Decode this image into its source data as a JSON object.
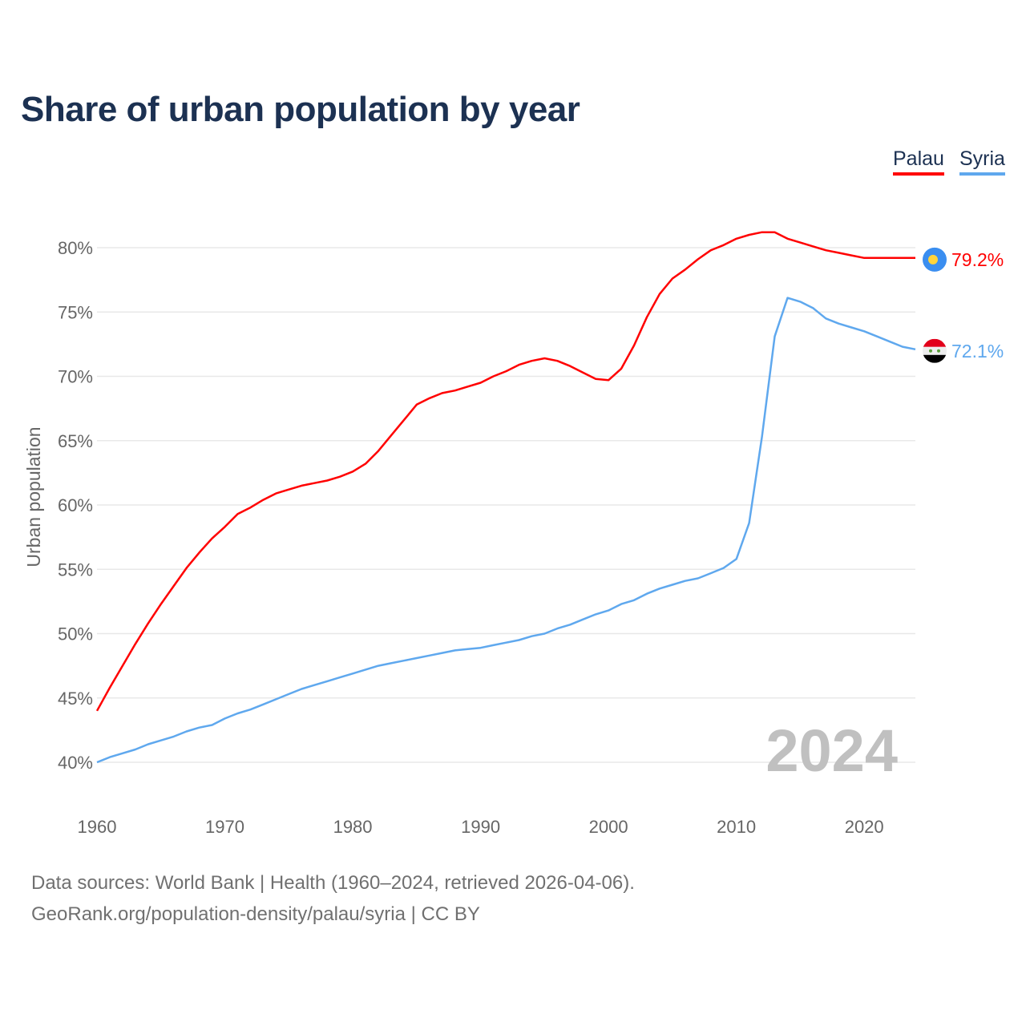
{
  "title": "Share of urban population by year",
  "legend": [
    {
      "name": "Palau",
      "color": "#ff0000"
    },
    {
      "name": "Syria",
      "color": "#5fa8ee"
    }
  ],
  "year_watermark": "2024",
  "footer": {
    "line1": "Data sources: World Bank | Health (1960–2024, retrieved 2026-04-06).",
    "line2": "GeoRank.org/population-density/palau/syria | CC BY"
  },
  "chart_data": {
    "type": "line",
    "title": "Share of urban population by year",
    "xlabel": "",
    "ylabel": "Urban population",
    "xlim": [
      1960,
      2024
    ],
    "ylim": [
      40,
      80
    ],
    "yticks": [
      40,
      45,
      50,
      55,
      60,
      65,
      70,
      75,
      80
    ],
    "ytick_labels": [
      "40%",
      "45%",
      "50%",
      "55%",
      "60%",
      "65%",
      "70%",
      "75%",
      "80%"
    ],
    "xticks": [
      1960,
      1970,
      1980,
      1990,
      2000,
      2010,
      2020
    ],
    "xtick_labels": [
      "1960",
      "1970",
      "1980",
      "1990",
      "2000",
      "2010",
      "2020"
    ],
    "grid": true,
    "legend_position": "top-right",
    "x": [
      1960,
      1961,
      1962,
      1963,
      1964,
      1965,
      1966,
      1967,
      1968,
      1969,
      1970,
      1971,
      1972,
      1973,
      1974,
      1975,
      1976,
      1977,
      1978,
      1979,
      1980,
      1981,
      1982,
      1983,
      1984,
      1985,
      1986,
      1987,
      1988,
      1989,
      1990,
      1991,
      1992,
      1993,
      1994,
      1995,
      1996,
      1997,
      1998,
      1999,
      2000,
      2001,
      2002,
      2003,
      2004,
      2005,
      2006,
      2007,
      2008,
      2009,
      2010,
      2011,
      2012,
      2013,
      2014,
      2015,
      2016,
      2017,
      2018,
      2019,
      2020,
      2021,
      2022,
      2023,
      2024
    ],
    "series": [
      {
        "name": "Palau",
        "color": "#ff0000",
        "end_label": "79.2%",
        "flag": "palau-flag",
        "values": [
          44.0,
          45.8,
          47.5,
          49.2,
          50.8,
          52.3,
          53.7,
          55.1,
          56.3,
          57.4,
          58.3,
          59.3,
          59.8,
          60.4,
          60.9,
          61.2,
          61.5,
          61.7,
          61.9,
          62.2,
          62.6,
          63.2,
          64.2,
          65.4,
          66.6,
          67.8,
          68.3,
          68.7,
          68.9,
          69.2,
          69.5,
          70.0,
          70.4,
          70.9,
          71.2,
          71.4,
          71.2,
          70.8,
          70.3,
          69.8,
          69.7,
          70.6,
          72.4,
          74.6,
          76.4,
          77.6,
          78.3,
          79.1,
          79.8,
          80.2,
          80.7,
          81.0,
          81.2,
          81.2,
          80.7,
          80.4,
          80.1,
          79.8,
          79.6,
          79.4,
          79.2,
          79.2,
          79.2,
          79.2,
          79.2
        ]
      },
      {
        "name": "Syria",
        "color": "#5fa8ee",
        "end_label": "72.1%",
        "flag": "syria-flag",
        "values": [
          40.0,
          40.4,
          40.7,
          41.0,
          41.4,
          41.7,
          42.0,
          42.4,
          42.7,
          42.9,
          43.4,
          43.8,
          44.1,
          44.5,
          44.9,
          45.3,
          45.7,
          46.0,
          46.3,
          46.6,
          46.9,
          47.2,
          47.5,
          47.7,
          47.9,
          48.1,
          48.3,
          48.5,
          48.7,
          48.8,
          48.9,
          49.1,
          49.3,
          49.5,
          49.8,
          50.0,
          50.4,
          50.7,
          51.1,
          51.5,
          51.8,
          52.3,
          52.6,
          53.1,
          53.5,
          53.8,
          54.1,
          54.3,
          54.7,
          55.1,
          55.8,
          58.6,
          65.3,
          73.1,
          76.1,
          75.8,
          75.3,
          74.5,
          74.1,
          73.8,
          73.5,
          73.1,
          72.7,
          72.3,
          72.1
        ]
      }
    ]
  }
}
